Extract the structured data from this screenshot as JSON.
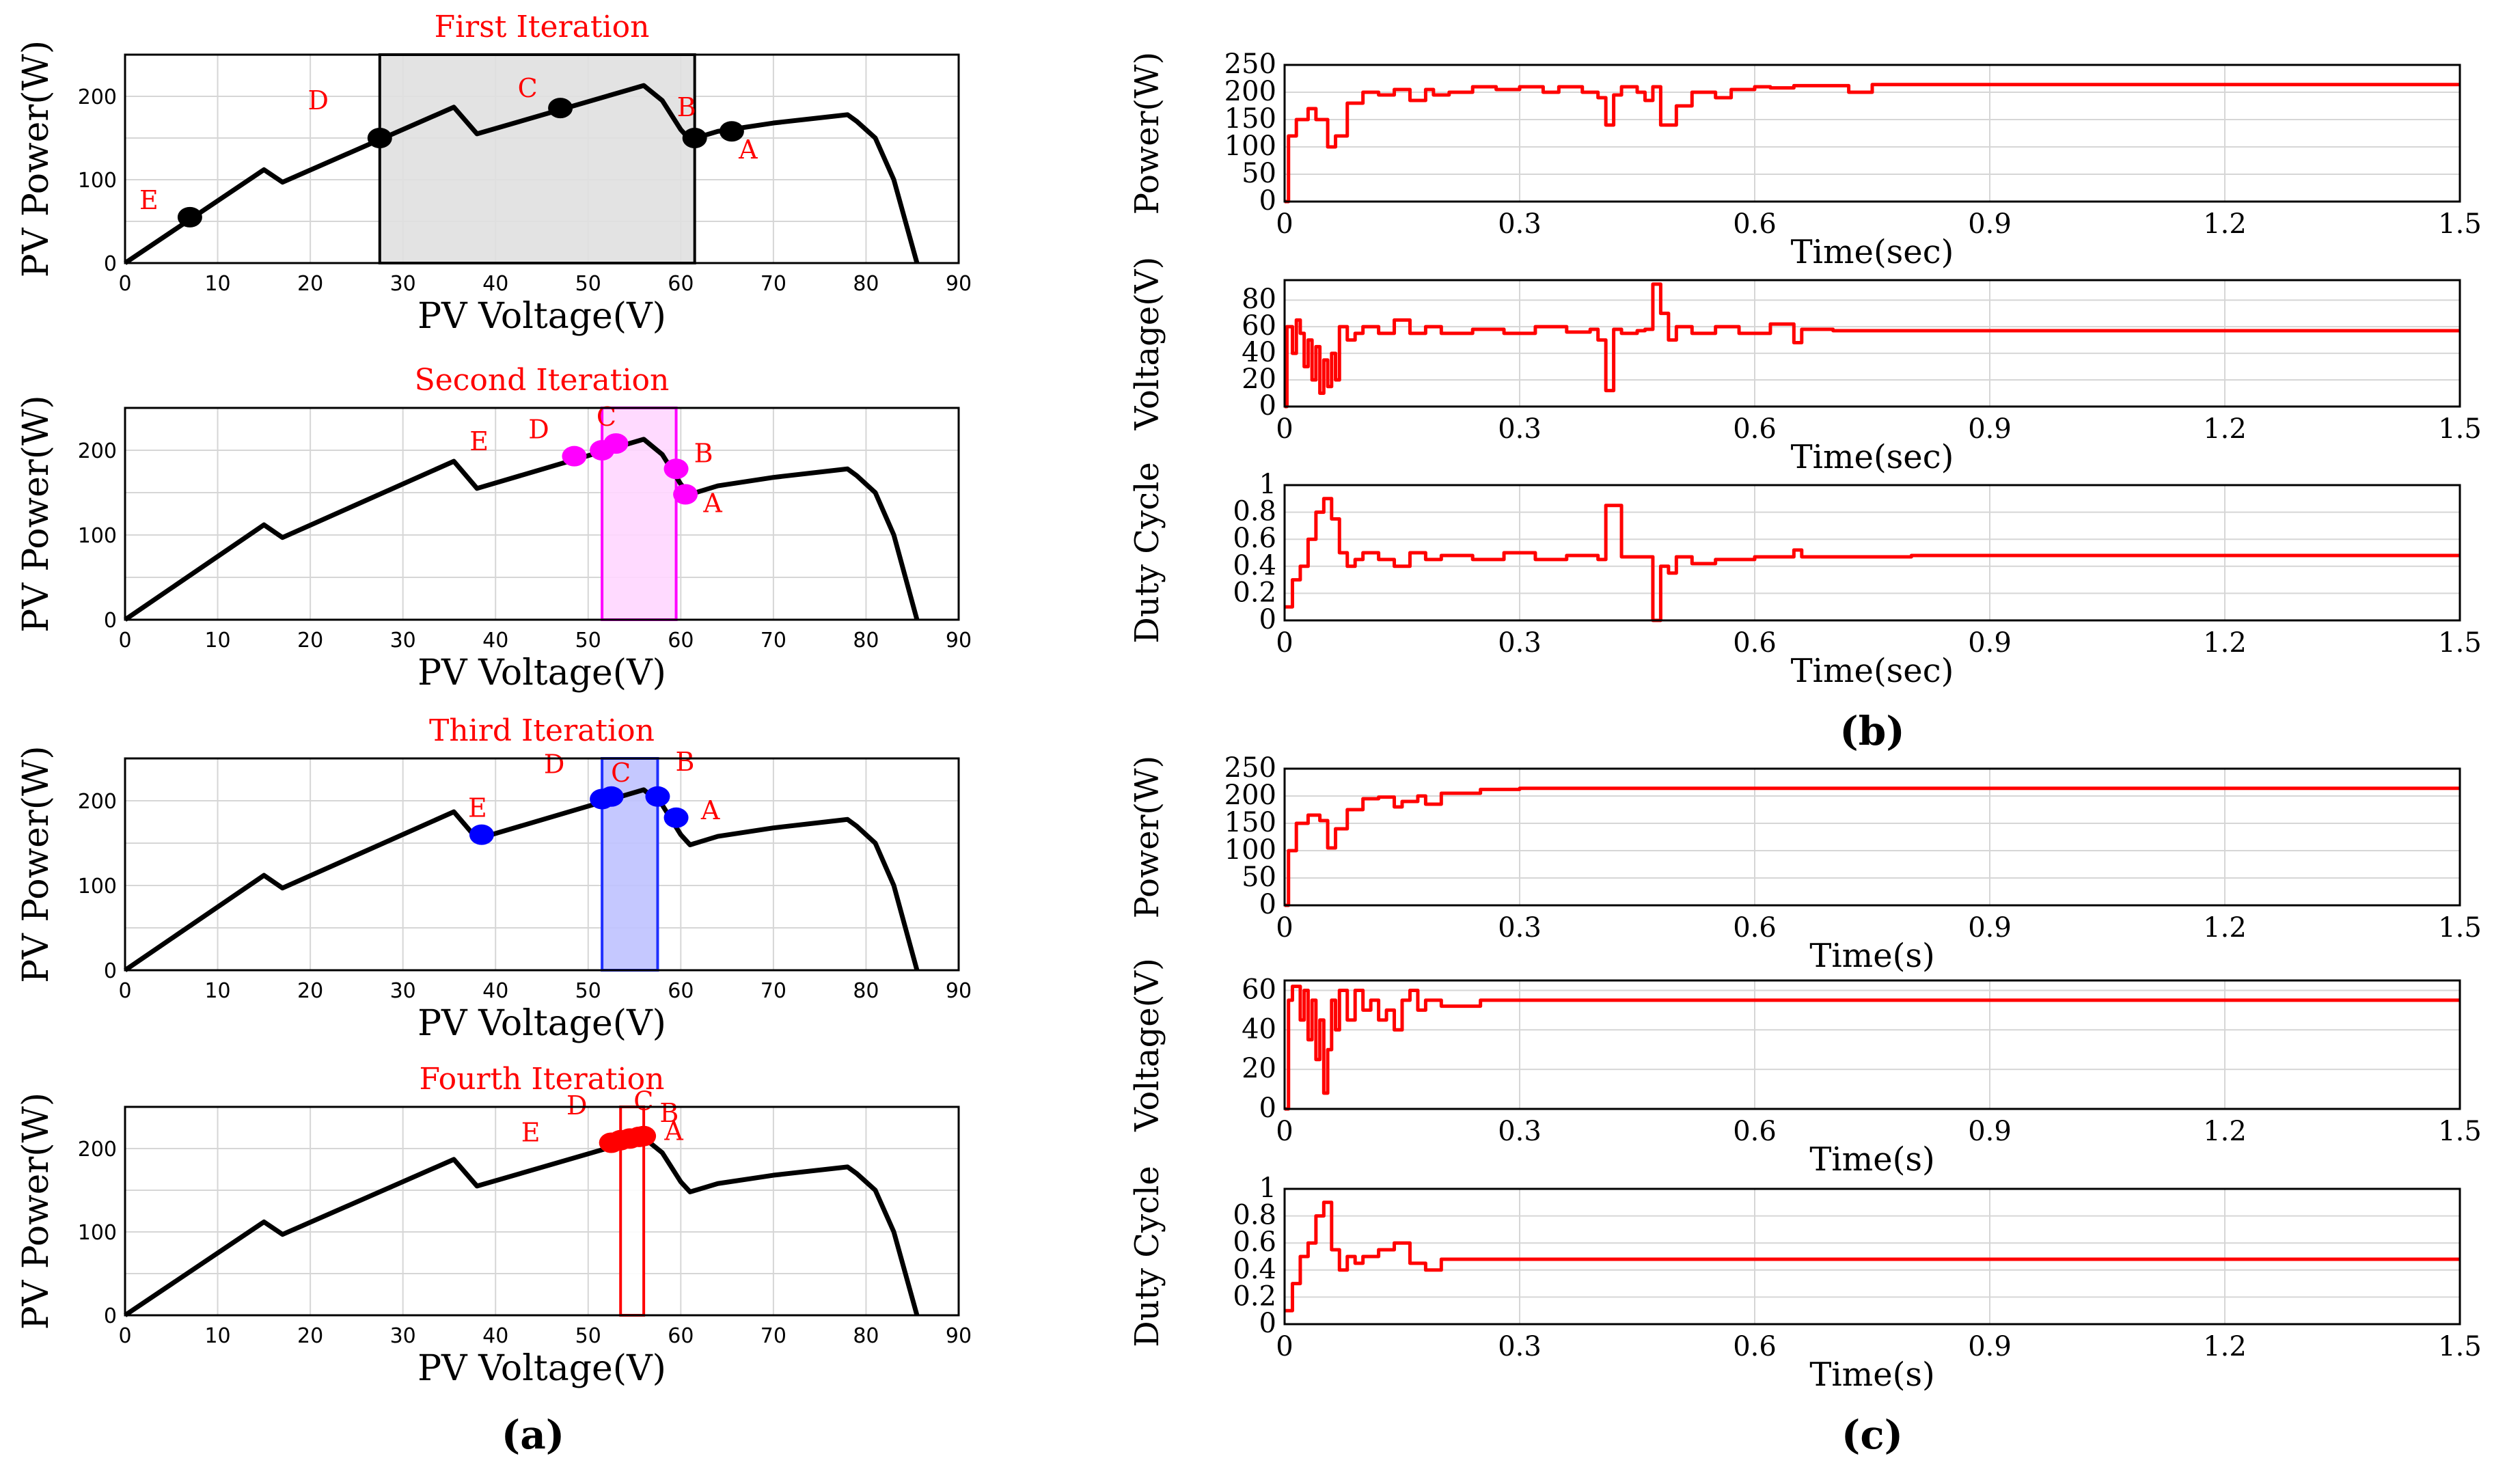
{
  "figure": {
    "panel_a_label": "(a)",
    "panel_b_label": "(b)",
    "panel_c_label": "(c)"
  },
  "chart_data": [
    {
      "id": "a1",
      "type": "line",
      "title": "First Iteration",
      "xlabel": "PV Voltage(V)",
      "ylabel": "PV Power(W)",
      "xlim": [
        0,
        90
      ],
      "ylim": [
        0,
        250
      ],
      "xticks": [
        0,
        10,
        20,
        30,
        40,
        50,
        60,
        70,
        80,
        90
      ],
      "yticks": [
        0,
        100,
        200
      ],
      "grid": true,
      "pv_curve": {
        "x": [
          0,
          15,
          17,
          35.5,
          38,
          56,
          58,
          60,
          61,
          64,
          70,
          78,
          79,
          81,
          83,
          85.5
        ],
        "y": [
          0,
          112,
          97,
          187,
          155,
          213,
          195,
          160,
          148,
          158,
          168,
          178,
          170,
          150,
          100,
          0
        ]
      },
      "window": {
        "x0": 27.5,
        "x1": 61.5,
        "color": "#e0e0e0",
        "edge": "#000000"
      },
      "points_color": "#000000",
      "points": [
        {
          "label": "A",
          "x": 65.5,
          "y": 158
        },
        {
          "label": "B",
          "x": 61.5,
          "y": 150
        },
        {
          "label": "C",
          "x": 47,
          "y": 186
        },
        {
          "label": "D",
          "x": 27.5,
          "y": 150
        },
        {
          "label": "E",
          "x": 7,
          "y": 55
        }
      ]
    },
    {
      "id": "a2",
      "type": "line",
      "title": "Second Iteration",
      "xlabel": "PV Voltage(V)",
      "ylabel": "PV Power(W)",
      "xlim": [
        0,
        90
      ],
      "ylim": [
        0,
        250
      ],
      "xticks": [
        0,
        10,
        20,
        30,
        40,
        50,
        60,
        70,
        80,
        90
      ],
      "yticks": [
        0,
        100,
        200
      ],
      "grid": true,
      "pv_curve": {
        "x": [
          0,
          15,
          17,
          35.5,
          38,
          56,
          58,
          60,
          61,
          64,
          70,
          78,
          79,
          81,
          83,
          85.5
        ],
        "y": [
          0,
          112,
          97,
          187,
          155,
          213,
          195,
          160,
          148,
          158,
          168,
          178,
          170,
          150,
          100,
          0
        ]
      },
      "window": {
        "x0": 51.5,
        "x1": 59.5,
        "color": "#ffd6ff",
        "edge": "#ff00ff"
      },
      "points_color": "#ff00ff",
      "points": [
        {
          "label": "A",
          "x": 60.5,
          "y": 148
        },
        {
          "label": "B",
          "x": 59.5,
          "y": 178
        },
        {
          "label": "C",
          "x": 53,
          "y": 208
        },
        {
          "label": "D",
          "x": 48.5,
          "y": 193
        },
        {
          "label": "E",
          "x": 51.5,
          "y": 200
        }
      ]
    },
    {
      "id": "a3",
      "type": "line",
      "title": "Third Iteration",
      "xlabel": "PV Voltage(V)",
      "ylabel": "PV Power(W)",
      "xlim": [
        0,
        90
      ],
      "ylim": [
        0,
        250
      ],
      "xticks": [
        0,
        10,
        20,
        30,
        40,
        50,
        60,
        70,
        80,
        90
      ],
      "yticks": [
        0,
        100,
        200
      ],
      "grid": true,
      "pv_curve": {
        "x": [
          0,
          15,
          17,
          35.5,
          38,
          56,
          58,
          60,
          61,
          64,
          70,
          78,
          79,
          81,
          83,
          85.5
        ],
        "y": [
          0,
          112,
          97,
          187,
          155,
          213,
          195,
          160,
          148,
          158,
          168,
          178,
          170,
          150,
          100,
          0
        ]
      },
      "window": {
        "x0": 51.5,
        "x1": 57.5,
        "color": "#bfc2ff",
        "edge": "#2030ff"
      },
      "points_color": "#0000ff",
      "points": [
        {
          "label": "A",
          "x": 59.5,
          "y": 180
        },
        {
          "label": "B",
          "x": 57.5,
          "y": 205
        },
        {
          "label": "C",
          "x": 52.5,
          "y": 205
        },
        {
          "label": "D",
          "x": 51.5,
          "y": 202
        },
        {
          "label": "E",
          "x": 38.5,
          "y": 160
        }
      ]
    },
    {
      "id": "a4",
      "type": "line",
      "title": "Fourth Iteration",
      "xlabel": "PV Voltage(V)",
      "ylabel": "PV Power(W)",
      "xlim": [
        0,
        90
      ],
      "ylim": [
        0,
        250
      ],
      "xticks": [
        0,
        10,
        20,
        30,
        40,
        50,
        60,
        70,
        80,
        90
      ],
      "yticks": [
        0,
        100,
        200
      ],
      "grid": true,
      "pv_curve": {
        "x": [
          0,
          15,
          17,
          35.5,
          38,
          56,
          58,
          60,
          61,
          64,
          70,
          78,
          79,
          81,
          83,
          85.5
        ],
        "y": [
          0,
          112,
          97,
          187,
          155,
          213,
          195,
          160,
          148,
          158,
          168,
          178,
          170,
          150,
          100,
          0
        ]
      },
      "window": {
        "x0": 53.5,
        "x1": 56,
        "color": "#ffffff",
        "edge": "#ff0000"
      },
      "points_color": "#ff0000",
      "points": [
        {
          "label": "A",
          "x": 56,
          "y": 215
        },
        {
          "label": "B",
          "x": 55.5,
          "y": 214
        },
        {
          "label": "C",
          "x": 54.5,
          "y": 212
        },
        {
          "label": "D",
          "x": 53.5,
          "y": 210
        },
        {
          "label": "E",
          "x": 52.5,
          "y": 207
        }
      ]
    },
    {
      "id": "b1",
      "type": "line",
      "xlabel": "Time(sec)",
      "ylabel": "Power(W)",
      "xlim": [
        0,
        1.5
      ],
      "ylim": [
        0,
        250
      ],
      "xticks": [
        0,
        0.3,
        0.6,
        0.9,
        1.2,
        1.5
      ],
      "ytick_labels": [
        0,
        50,
        100,
        150,
        200,
        250
      ],
      "grid": true,
      "series": [
        {
          "name": "Power",
          "color": "#ff0000",
          "x": [
            0,
            0.005,
            0.015,
            0.03,
            0.04,
            0.055,
            0.065,
            0.08,
            0.1,
            0.12,
            0.14,
            0.16,
            0.18,
            0.19,
            0.21,
            0.24,
            0.27,
            0.3,
            0.33,
            0.35,
            0.38,
            0.4,
            0.41,
            0.42,
            0.43,
            0.45,
            0.46,
            0.47,
            0.48,
            0.5,
            0.52,
            0.55,
            0.57,
            0.6,
            0.62,
            0.65,
            0.7,
            0.72,
            0.75,
            0.8,
            0.9,
            1.0,
            1.2,
            1.5
          ],
          "y": [
            0,
            120,
            150,
            170,
            150,
            100,
            120,
            180,
            200,
            195,
            205,
            185,
            205,
            195,
            200,
            210,
            205,
            210,
            200,
            210,
            200,
            190,
            140,
            195,
            210,
            200,
            185,
            210,
            140,
            175,
            200,
            190,
            205,
            210,
            208,
            212,
            212,
            200,
            214,
            214,
            214,
            214,
            214,
            214
          ]
        }
      ]
    },
    {
      "id": "b2",
      "type": "line",
      "xlabel": "Time(sec)",
      "ylabel": "Voltage(V)",
      "xlim": [
        0,
        1.5
      ],
      "ylim": [
        0,
        95
      ],
      "xticks": [
        0,
        0.3,
        0.6,
        0.9,
        1.2,
        1.5
      ],
      "ytick_labels": [
        0,
        20,
        40,
        60,
        80
      ],
      "grid": true,
      "series": [
        {
          "name": "Voltage",
          "color": "#ff0000",
          "x": [
            0,
            0.003,
            0.01,
            0.015,
            0.02,
            0.025,
            0.03,
            0.035,
            0.04,
            0.045,
            0.05,
            0.055,
            0.06,
            0.065,
            0.07,
            0.08,
            0.09,
            0.1,
            0.12,
            0.14,
            0.16,
            0.18,
            0.2,
            0.24,
            0.28,
            0.32,
            0.36,
            0.39,
            0.4,
            0.41,
            0.42,
            0.43,
            0.45,
            0.46,
            0.47,
            0.48,
            0.49,
            0.5,
            0.52,
            0.55,
            0.58,
            0.62,
            0.65,
            0.66,
            0.7,
            0.8,
            1.0,
            1.2,
            1.5
          ],
          "y": [
            0,
            60,
            40,
            65,
            55,
            30,
            50,
            20,
            45,
            10,
            35,
            15,
            40,
            20,
            60,
            50,
            55,
            60,
            55,
            65,
            55,
            60,
            55,
            58,
            55,
            60,
            56,
            58,
            50,
            12,
            58,
            55,
            57,
            58,
            92,
            70,
            50,
            60,
            55,
            60,
            55,
            62,
            48,
            58,
            57,
            57,
            57,
            57,
            57
          ]
        }
      ]
    },
    {
      "id": "b3",
      "type": "line",
      "xlabel": "Time(sec)",
      "ylabel": "Duty Cycle",
      "xlim": [
        0,
        1.5
      ],
      "ylim": [
        0,
        1
      ],
      "xticks": [
        0,
        0.3,
        0.6,
        0.9,
        1.2,
        1.5
      ],
      "ytick_labels": [
        0,
        0.2,
        0.4,
        0.6,
        0.8,
        1
      ],
      "grid": true,
      "series": [
        {
          "name": "Duty",
          "color": "#ff0000",
          "x": [
            0,
            0.01,
            0.02,
            0.03,
            0.04,
            0.05,
            0.06,
            0.07,
            0.08,
            0.09,
            0.1,
            0.12,
            0.14,
            0.16,
            0.18,
            0.2,
            0.24,
            0.28,
            0.32,
            0.36,
            0.4,
            0.41,
            0.42,
            0.43,
            0.46,
            0.47,
            0.48,
            0.49,
            0.5,
            0.52,
            0.55,
            0.6,
            0.64,
            0.65,
            0.66,
            0.7,
            0.8,
            1.0,
            1.2,
            1.5
          ],
          "y": [
            0.1,
            0.3,
            0.4,
            0.6,
            0.8,
            0.9,
            0.75,
            0.5,
            0.4,
            0.45,
            0.5,
            0.45,
            0.4,
            0.5,
            0.45,
            0.48,
            0.45,
            0.5,
            0.45,
            0.48,
            0.45,
            0.85,
            0.85,
            0.47,
            0.47,
            0.0,
            0.4,
            0.35,
            0.47,
            0.42,
            0.45,
            0.47,
            0.47,
            0.52,
            0.47,
            0.47,
            0.48,
            0.48,
            0.48,
            0.48
          ]
        }
      ]
    },
    {
      "id": "c1",
      "type": "line",
      "xlabel": "Time(s)",
      "ylabel": "Power(W)",
      "xlim": [
        0,
        1.5
      ],
      "ylim": [
        0,
        250
      ],
      "xticks": [
        0,
        0.3,
        0.6,
        0.9,
        1.2,
        1.5
      ],
      "ytick_labels": [
        0,
        50,
        100,
        150,
        200,
        250
      ],
      "grid": true,
      "series": [
        {
          "name": "Power",
          "color": "#ff0000",
          "x": [
            0,
            0.005,
            0.015,
            0.03,
            0.045,
            0.055,
            0.065,
            0.08,
            0.1,
            0.12,
            0.14,
            0.15,
            0.17,
            0.18,
            0.2,
            0.25,
            0.3,
            0.5,
            1.0,
            1.5
          ],
          "y": [
            0,
            100,
            150,
            165,
            155,
            105,
            140,
            175,
            195,
            198,
            180,
            190,
            200,
            185,
            205,
            212,
            214,
            214,
            214,
            214
          ]
        }
      ]
    },
    {
      "id": "c2",
      "type": "line",
      "xlabel": "Time(s)",
      "ylabel": "Voltage(V)",
      "xlim": [
        0,
        1.5
      ],
      "ylim": [
        0,
        65
      ],
      "xticks": [
        0,
        0.3,
        0.6,
        0.9,
        1.2,
        1.5
      ],
      "ytick_labels": [
        0,
        20,
        40,
        60
      ],
      "grid": true,
      "series": [
        {
          "name": "Voltage",
          "color": "#ff0000",
          "x": [
            0,
            0.005,
            0.01,
            0.02,
            0.025,
            0.03,
            0.035,
            0.04,
            0.045,
            0.05,
            0.055,
            0.06,
            0.065,
            0.07,
            0.08,
            0.09,
            0.1,
            0.11,
            0.12,
            0.13,
            0.14,
            0.15,
            0.16,
            0.17,
            0.18,
            0.2,
            0.25,
            0.3,
            0.5,
            1.0,
            1.5
          ],
          "y": [
            0,
            55,
            62,
            45,
            60,
            35,
            55,
            25,
            45,
            8,
            30,
            55,
            40,
            60,
            45,
            60,
            50,
            55,
            45,
            50,
            40,
            55,
            60,
            50,
            55,
            52,
            55,
            55,
            55,
            55,
            55
          ]
        }
      ]
    },
    {
      "id": "c3",
      "type": "line",
      "xlabel": "Time(s)",
      "ylabel": "Duty Cycle",
      "xlim": [
        0,
        1.5
      ],
      "ylim": [
        0,
        1
      ],
      "xticks": [
        0,
        0.3,
        0.6,
        0.9,
        1.2,
        1.5
      ],
      "ytick_labels": [
        0,
        0.2,
        0.4,
        0.6,
        0.8,
        1
      ],
      "grid": true,
      "series": [
        {
          "name": "Duty",
          "color": "#ff0000",
          "x": [
            0,
            0.01,
            0.02,
            0.03,
            0.04,
            0.05,
            0.06,
            0.07,
            0.08,
            0.09,
            0.1,
            0.12,
            0.14,
            0.16,
            0.18,
            0.2,
            0.3,
            0.5,
            1.0,
            1.5
          ],
          "y": [
            0.1,
            0.3,
            0.5,
            0.6,
            0.8,
            0.9,
            0.55,
            0.4,
            0.5,
            0.45,
            0.5,
            0.55,
            0.6,
            0.45,
            0.4,
            0.48,
            0.48,
            0.48,
            0.48,
            0.48
          ]
        }
      ]
    }
  ]
}
